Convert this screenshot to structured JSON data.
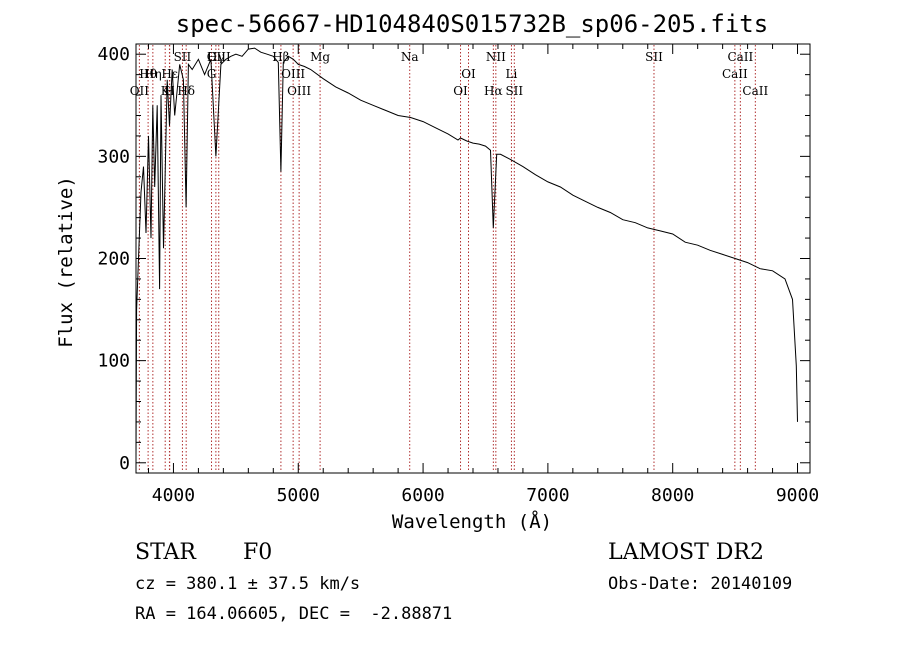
{
  "chart_data": {
    "type": "line",
    "title": "spec-56667-HD104840S015732B_sp06-205.fits",
    "xlabel": "Wavelength (Å)",
    "ylabel": "Flux (relative)",
    "xlim": [
      3700,
      9100
    ],
    "ylim": [
      -10,
      410
    ],
    "xticks": [
      4000,
      5000,
      6000,
      7000,
      8000,
      9000
    ],
    "yticks": [
      0,
      100,
      200,
      300,
      400
    ],
    "grid": false,
    "line_color": "#000000",
    "marker_color": "#b03030",
    "spectrum": {
      "x": [
        3700,
        3705,
        3720,
        3740,
        3760,
        3780,
        3800,
        3820,
        3835,
        3850,
        3870,
        3889,
        3900,
        3920,
        3933,
        3950,
        3968,
        3990,
        4010,
        4050,
        4080,
        4101,
        4120,
        4150,
        4200,
        4250,
        4300,
        4340,
        4380,
        4420,
        4460,
        4500,
        4550,
        4600,
        4650,
        4700,
        4750,
        4800,
        4840,
        4861,
        4880,
        4920,
        4960,
        5000,
        5050,
        5100,
        5200,
        5300,
        5400,
        5500,
        5600,
        5700,
        5800,
        5900,
        6000,
        6100,
        6200,
        6280,
        6300,
        6350,
        6400,
        6450,
        6500,
        6540,
        6563,
        6590,
        6620,
        6700,
        6800,
        6900,
        7000,
        7100,
        7200,
        7300,
        7400,
        7500,
        7600,
        7700,
        7800,
        7900,
        8000,
        8100,
        8200,
        8300,
        8400,
        8500,
        8600,
        8700,
        8800,
        8900,
        8960,
        8990,
        9000
      ],
      "y": [
        5,
        150,
        200,
        265,
        290,
        225,
        320,
        220,
        350,
        270,
        350,
        170,
        360,
        210,
        280,
        375,
        330,
        385,
        340,
        390,
        375,
        250,
        390,
        385,
        395,
        380,
        395,
        300,
        390,
        395,
        398,
        400,
        398,
        405,
        406,
        402,
        400,
        398,
        392,
        285,
        392,
        398,
        395,
        390,
        388,
        385,
        376,
        368,
        362,
        355,
        350,
        345,
        340,
        338,
        334,
        328,
        322,
        316,
        318,
        315,
        313,
        312,
        310,
        306,
        230,
        302,
        302,
        297,
        290,
        282,
        275,
        270,
        262,
        256,
        250,
        245,
        238,
        235,
        230,
        227,
        224,
        216,
        213,
        208,
        204,
        200,
        196,
        190,
        188,
        180,
        160,
        95,
        40
      ]
    },
    "line_markers": [
      {
        "label": "Hγ",
        "x": 4340,
        "row": 1
      },
      {
        "label": "Hθ",
        "x": 3797,
        "row": 2
      },
      {
        "label": "OII",
        "x": 3727,
        "row": 3
      },
      {
        "label": "SII",
        "x": 4072,
        "row": 1
      },
      {
        "label": "Hη",
        "x": 3835,
        "row": 2
      },
      {
        "label": "K",
        "x": 3934,
        "row": 3
      },
      {
        "label": "OIII",
        "x": 4363,
        "row": 1
      },
      {
        "label": "Hε",
        "x": 3970,
        "row": 2
      },
      {
        "label": "Hδ",
        "x": 4102,
        "row": 3
      },
      {
        "label": "G",
        "x": 4305,
        "row": 2
      },
      {
        "label": "H",
        "x": 3968,
        "row": 3
      },
      {
        "label": "Mg",
        "x": 5175,
        "row": 1
      },
      {
        "label": "OIII",
        "x": 4959,
        "row": 2
      },
      {
        "label": "OIII",
        "x": 5007,
        "row": 3
      },
      {
        "label": "Hβ",
        "x": 4861,
        "row": 1
      },
      {
        "label": "Na",
        "x": 5893,
        "row": 1
      },
      {
        "label": "NII",
        "x": 6583,
        "row": 1
      },
      {
        "label": "OI",
        "x": 6364,
        "row": 2
      },
      {
        "label": "Li",
        "x": 6708,
        "row": 2
      },
      {
        "label": "OI",
        "x": 6300,
        "row": 3
      },
      {
        "label": "Hα",
        "x": 6563,
        "row": 3
      },
      {
        "label": "SII",
        "x": 6731,
        "row": 3
      },
      {
        "label": "SII",
        "x": 7850,
        "row": 1
      },
      {
        "label": "CaII",
        "x": 8542,
        "row": 1
      },
      {
        "label": "CaII",
        "x": 8498,
        "row": 2
      },
      {
        "label": "CaII",
        "x": 8662,
        "row": 3
      }
    ]
  },
  "info": {
    "object_class": "STAR",
    "subclass": "F0",
    "survey": "LAMOST DR2",
    "cz": "cz = 380.1 ± 37.5 km/s",
    "obs_date": "Obs-Date: 20140109",
    "coords": "RA = 164.06605, DEC =  -2.88871"
  }
}
